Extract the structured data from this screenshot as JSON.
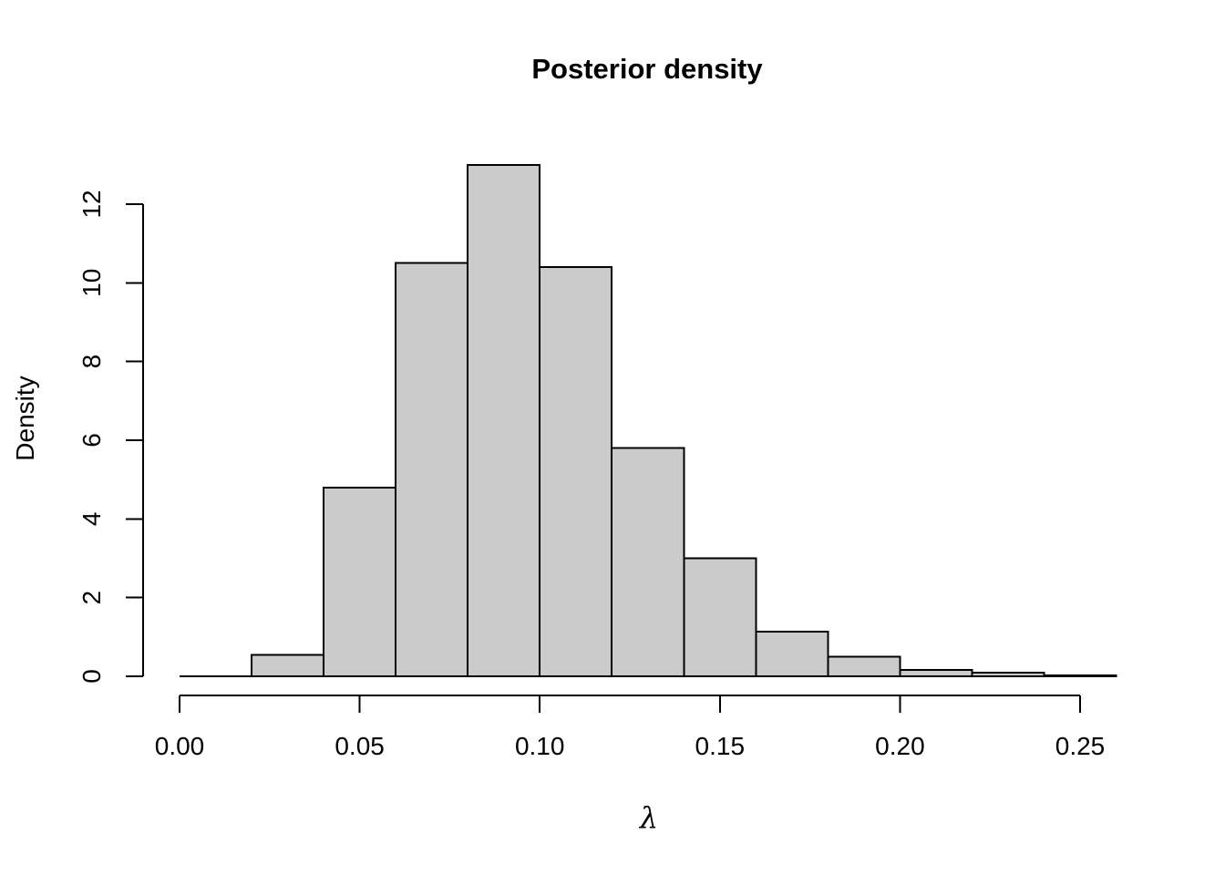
{
  "chart_data": {
    "type": "bar",
    "subtype": "histogram",
    "title": "Posterior density",
    "xlabel": "λ",
    "ylabel": "Density",
    "bin_edges": [
      0.0,
      0.02,
      0.04,
      0.06,
      0.08,
      0.1,
      0.12,
      0.14,
      0.16,
      0.18,
      0.2,
      0.22,
      0.24,
      0.26
    ],
    "densities": [
      0.0,
      0.55,
      4.8,
      10.5,
      13.0,
      10.4,
      5.8,
      3.0,
      1.13,
      0.5,
      0.16,
      0.09,
      0.02
    ],
    "x_ticks": [
      0.0,
      0.05,
      0.1,
      0.15,
      0.2,
      0.25
    ],
    "x_tick_labels": [
      "0.00",
      "0.05",
      "0.10",
      "0.15",
      "0.20",
      "0.25"
    ],
    "y_ticks": [
      0,
      2,
      4,
      6,
      8,
      10,
      12
    ],
    "y_tick_labels": [
      "0",
      "2",
      "4",
      "6",
      "8",
      "10",
      "12"
    ],
    "xlim": [
      0.0,
      0.26
    ],
    "ylim": [
      0,
      13
    ],
    "grid": false,
    "legend_position": "none",
    "bar_fill": "#CBCBCB",
    "bar_border": "#000000",
    "axis_color": "#000000",
    "background": "#FFFFFF"
  }
}
